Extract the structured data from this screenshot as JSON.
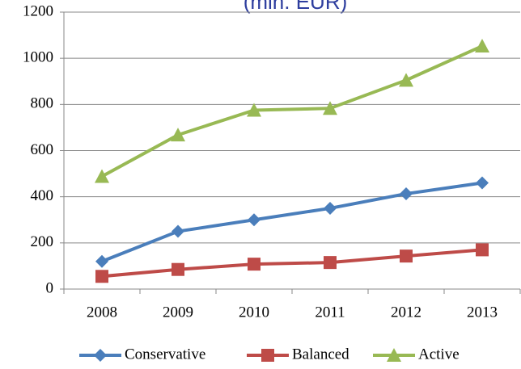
{
  "chart_data": {
    "type": "line",
    "title": "(mln. EUR)",
    "categories": [
      "2008",
      "2009",
      "2010",
      "2011",
      "2012",
      "2013"
    ],
    "series": [
      {
        "name": "Conservative",
        "color": "#4a7ebb",
        "marker": "diamond",
        "values": [
          120,
          250,
          300,
          350,
          413,
          460
        ]
      },
      {
        "name": "Balanced",
        "color": "#be4b48",
        "marker": "square",
        "values": [
          55,
          85,
          108,
          115,
          143,
          170
        ]
      },
      {
        "name": "Active",
        "color": "#98b954",
        "marker": "triangle",
        "values": [
          488,
          668,
          775,
          783,
          905,
          1053
        ]
      }
    ],
    "ylim": [
      0,
      1200
    ],
    "yticks": [
      0,
      200,
      400,
      600,
      800,
      1000,
      1200
    ],
    "grid": true,
    "legend": "bottom"
  }
}
